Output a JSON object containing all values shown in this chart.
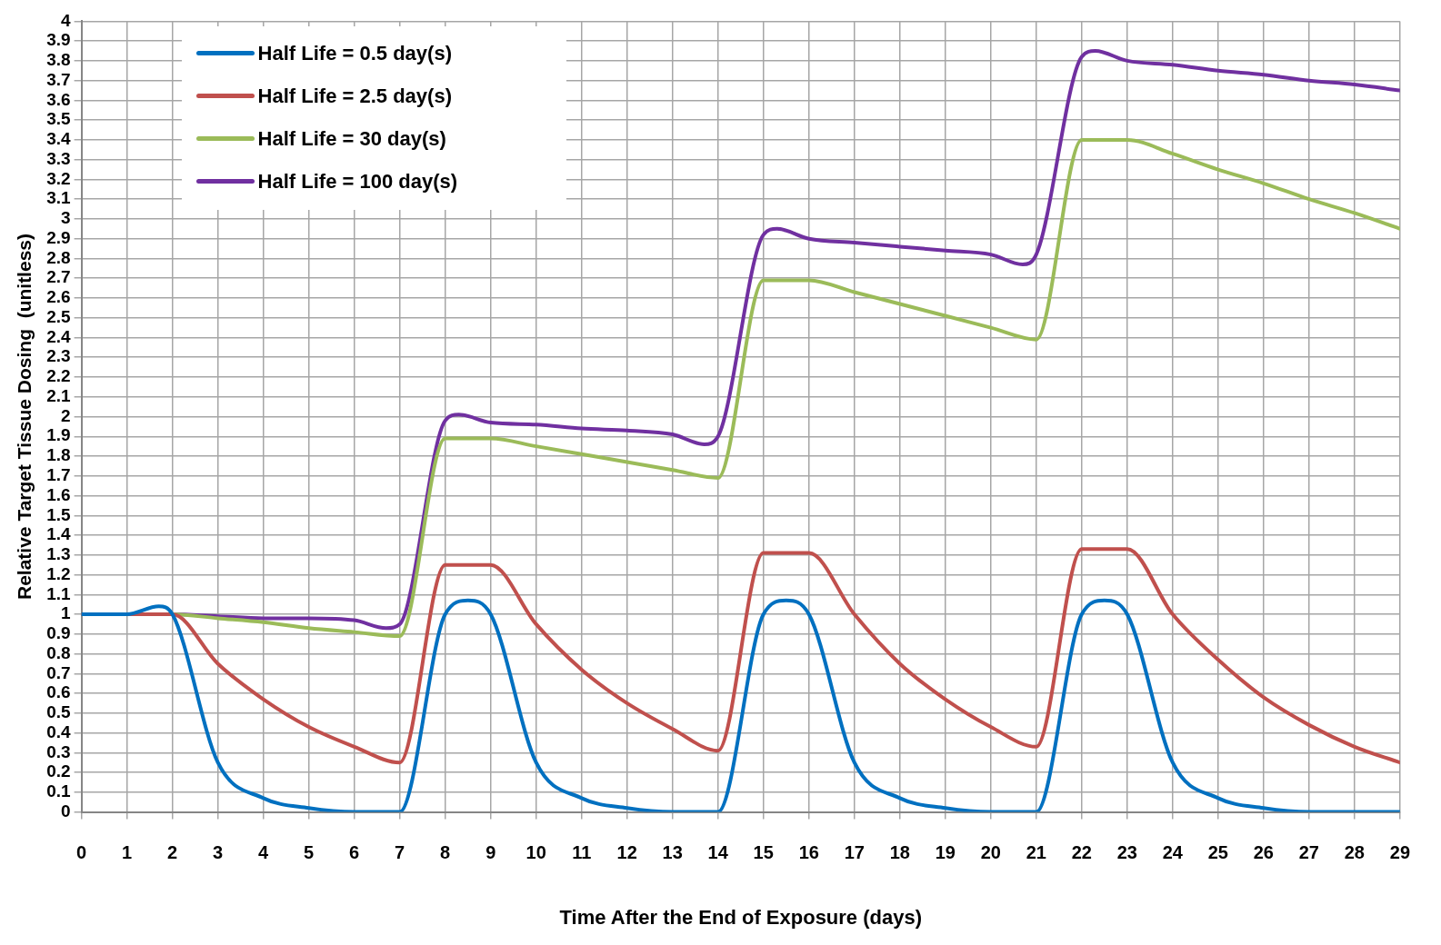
{
  "chart_data": {
    "type": "line",
    "xlabel": "Time After the End of Exposure (days)",
    "ylabel": "Relative Target Tissue Dosing  (unitless)",
    "xlim": [
      0,
      29
    ],
    "xticks": [
      0,
      1,
      2,
      3,
      4,
      5,
      6,
      7,
      8,
      9,
      10,
      11,
      12,
      13,
      14,
      15,
      16,
      17,
      18,
      19,
      20,
      21,
      22,
      23,
      24,
      25,
      26,
      27,
      28,
      29
    ],
    "ylim": [
      0,
      4
    ],
    "yticks": [
      0,
      0.1,
      0.2,
      0.3,
      0.4,
      0.5,
      0.6,
      0.7,
      0.8,
      0.9,
      1,
      1.1,
      1.2,
      1.3,
      1.4,
      1.5,
      1.6,
      1.7,
      1.8,
      1.9,
      2,
      2.1,
      2.2,
      2.3,
      2.4,
      2.5,
      2.6,
      2.7,
      2.8,
      2.9,
      3,
      3.1,
      3.2,
      3.3,
      3.4,
      3.5,
      3.6,
      3.7,
      3.8,
      3.9,
      4
    ],
    "grid": true,
    "legend": "top left",
    "marker": "none",
    "line_style": "solid",
    "series": [
      {
        "name": "Half Life = 0.5 day(s)",
        "color": "#0070c0",
        "x": [
          0,
          1,
          1.7,
          2,
          3,
          4,
          5,
          6,
          7,
          8,
          8.5,
          9,
          10,
          11,
          12,
          13,
          14,
          15,
          15.5,
          16,
          17,
          18,
          19,
          20,
          21,
          22,
          22.5,
          23,
          24,
          25,
          26,
          27,
          28,
          29
        ],
        "values": [
          1,
          1,
          1.04,
          1,
          0.25,
          0.07,
          0.02,
          0,
          0,
          1,
          1.07,
          1,
          0.25,
          0.07,
          0.02,
          0,
          0,
          1,
          1.07,
          1,
          0.25,
          0.07,
          0.02,
          0,
          0,
          1,
          1.07,
          1,
          0.25,
          0.07,
          0.02,
          0,
          0,
          0
        ]
      },
      {
        "name": "Half Life = 2.5 day(s)",
        "color": "#c0504d",
        "x": [
          0,
          1,
          2,
          3,
          4,
          5,
          6,
          7,
          8,
          9,
          10,
          11,
          12,
          13,
          14,
          15,
          16,
          17,
          18,
          19,
          20,
          21,
          22,
          23,
          24,
          25,
          26,
          27,
          28,
          29
        ],
        "values": [
          1,
          1,
          1,
          0.75,
          0.57,
          0.43,
          0.33,
          0.25,
          1.25,
          1.25,
          0.95,
          0.72,
          0.55,
          0.42,
          0.31,
          1.31,
          1.31,
          1,
          0.75,
          0.57,
          0.43,
          0.33,
          1.33,
          1.33,
          1,
          0.77,
          0.58,
          0.44,
          0.33,
          0.25
        ]
      },
      {
        "name": "Half Life = 30 day(s)",
        "color": "#9bbb59",
        "x": [
          0,
          1,
          2,
          3,
          4,
          5,
          6,
          7,
          8,
          9,
          10,
          11,
          12,
          13,
          14,
          15,
          16,
          17,
          18,
          19,
          20,
          21,
          22,
          23,
          24,
          25,
          26,
          27,
          28,
          29
        ],
        "values": [
          1,
          1,
          1,
          0.98,
          0.96,
          0.93,
          0.91,
          0.89,
          1.89,
          1.89,
          1.85,
          1.81,
          1.77,
          1.73,
          1.69,
          2.69,
          2.69,
          2.63,
          2.57,
          2.51,
          2.45,
          2.39,
          3.4,
          3.4,
          3.33,
          3.25,
          3.18,
          3.1,
          3.03,
          2.95
        ]
      },
      {
        "name": "Half Life = 100 day(s)",
        "color": "#7030a0",
        "x": [
          0,
          1,
          2,
          3,
          4,
          5,
          6,
          6.7,
          7,
          8,
          8.3,
          9,
          10,
          11,
          12,
          13,
          13.7,
          14,
          15,
          15.3,
          16,
          17,
          18,
          19,
          20,
          20.7,
          21,
          22,
          22.3,
          23,
          24,
          25,
          26,
          27,
          28,
          29
        ],
        "values": [
          1,
          1,
          1,
          0.99,
          0.98,
          0.98,
          0.97,
          0.93,
          0.95,
          1.98,
          2.01,
          1.97,
          1.96,
          1.94,
          1.93,
          1.91,
          1.86,
          1.9,
          2.92,
          2.95,
          2.9,
          2.88,
          2.86,
          2.84,
          2.82,
          2.77,
          2.82,
          3.82,
          3.85,
          3.8,
          3.78,
          3.75,
          3.73,
          3.7,
          3.68,
          3.65
        ]
      }
    ]
  }
}
